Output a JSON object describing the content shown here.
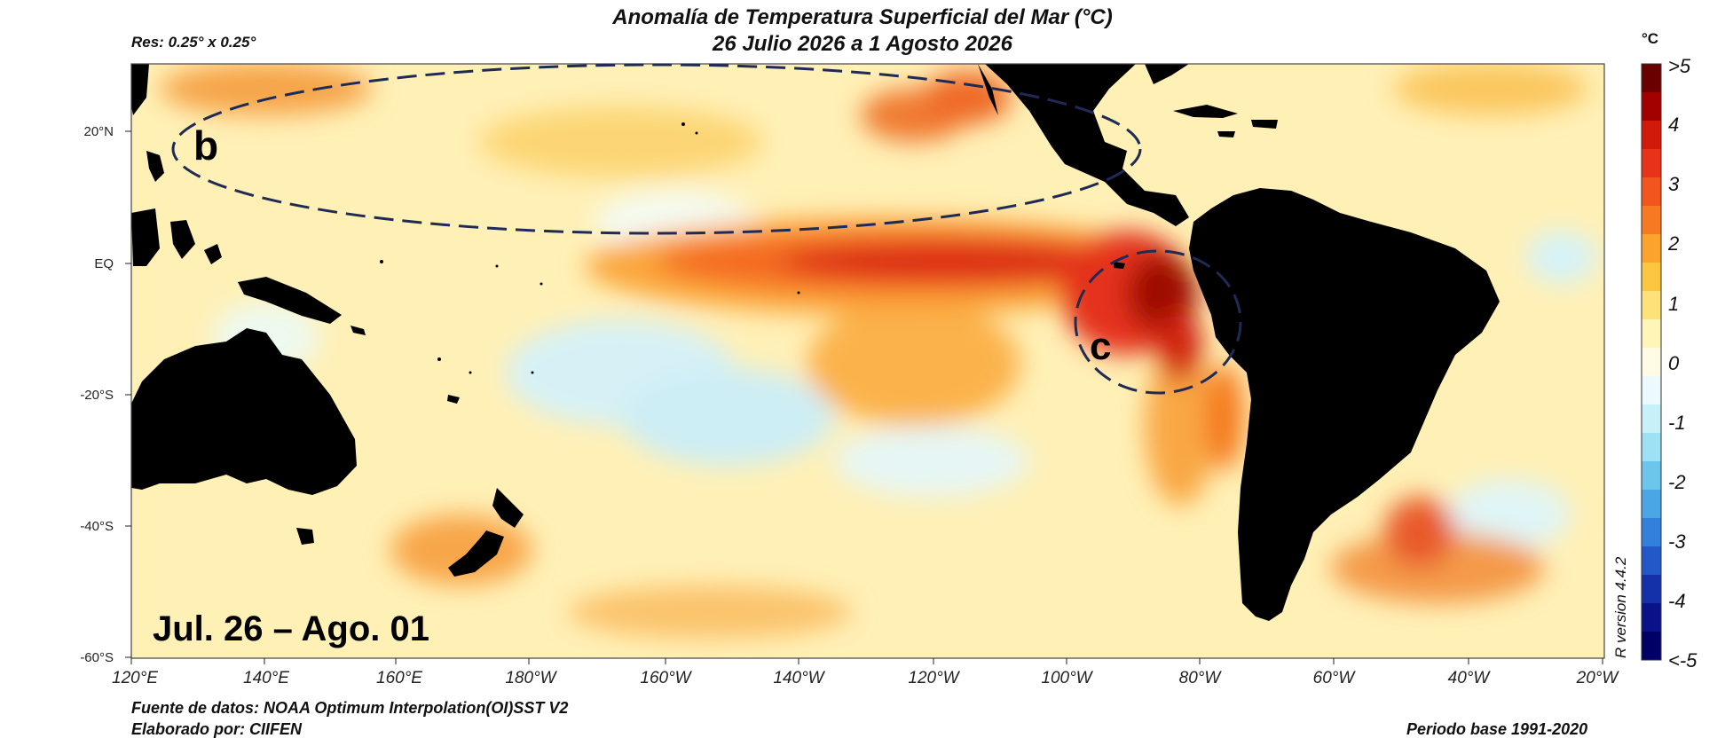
{
  "header": {
    "title_line1": "Anomalía de Temperatura Superficial del Mar (°C)",
    "title_line2": "26 Julio 2026 a 1 Agosto 2026",
    "resolution": "Res: 0.25° x 0.25°",
    "unit": "°C"
  },
  "map": {
    "lat_labels": [
      "20°N",
      "EQ",
      "-20°S",
      "-40°S",
      "-60°S"
    ],
    "lon_labels": [
      "120°E",
      "140°E",
      "160°E",
      "180°W",
      "160°W",
      "140°W",
      "120°W",
      "100°W",
      "80°W",
      "60°W",
      "40°W",
      "20°W"
    ],
    "annotations": {
      "region_b": "b",
      "region_c": "c",
      "period_overlay": "Jul. 26 – Ago. 01"
    },
    "version": "R version 4.4.2"
  },
  "colorbar": {
    "labels": [
      ">5",
      "4",
      "3",
      "2",
      "1",
      "0",
      "-1",
      "-2",
      "-3",
      "-4",
      "<-5"
    ],
    "colors": [
      "#6b0000",
      "#a30000",
      "#d11a0a",
      "#e8321a",
      "#f2561e",
      "#f77a22",
      "#fba32d",
      "#fdc640",
      "#fde27a",
      "#fff5b8",
      "#fffbe4",
      "#ecfafd",
      "#c7f0f9",
      "#9fe1f4",
      "#6cc6ec",
      "#4aa6e4",
      "#3380dc",
      "#2258c8",
      "#1530a8",
      "#0a128a",
      "#000066"
    ]
  },
  "footer": {
    "source": "Fuente de datos: NOAA Optimum Interpolation(OI)SST V2",
    "author": "Elaborado por: CIIFEN",
    "base_period": "Periodo base 1991-2020"
  }
}
